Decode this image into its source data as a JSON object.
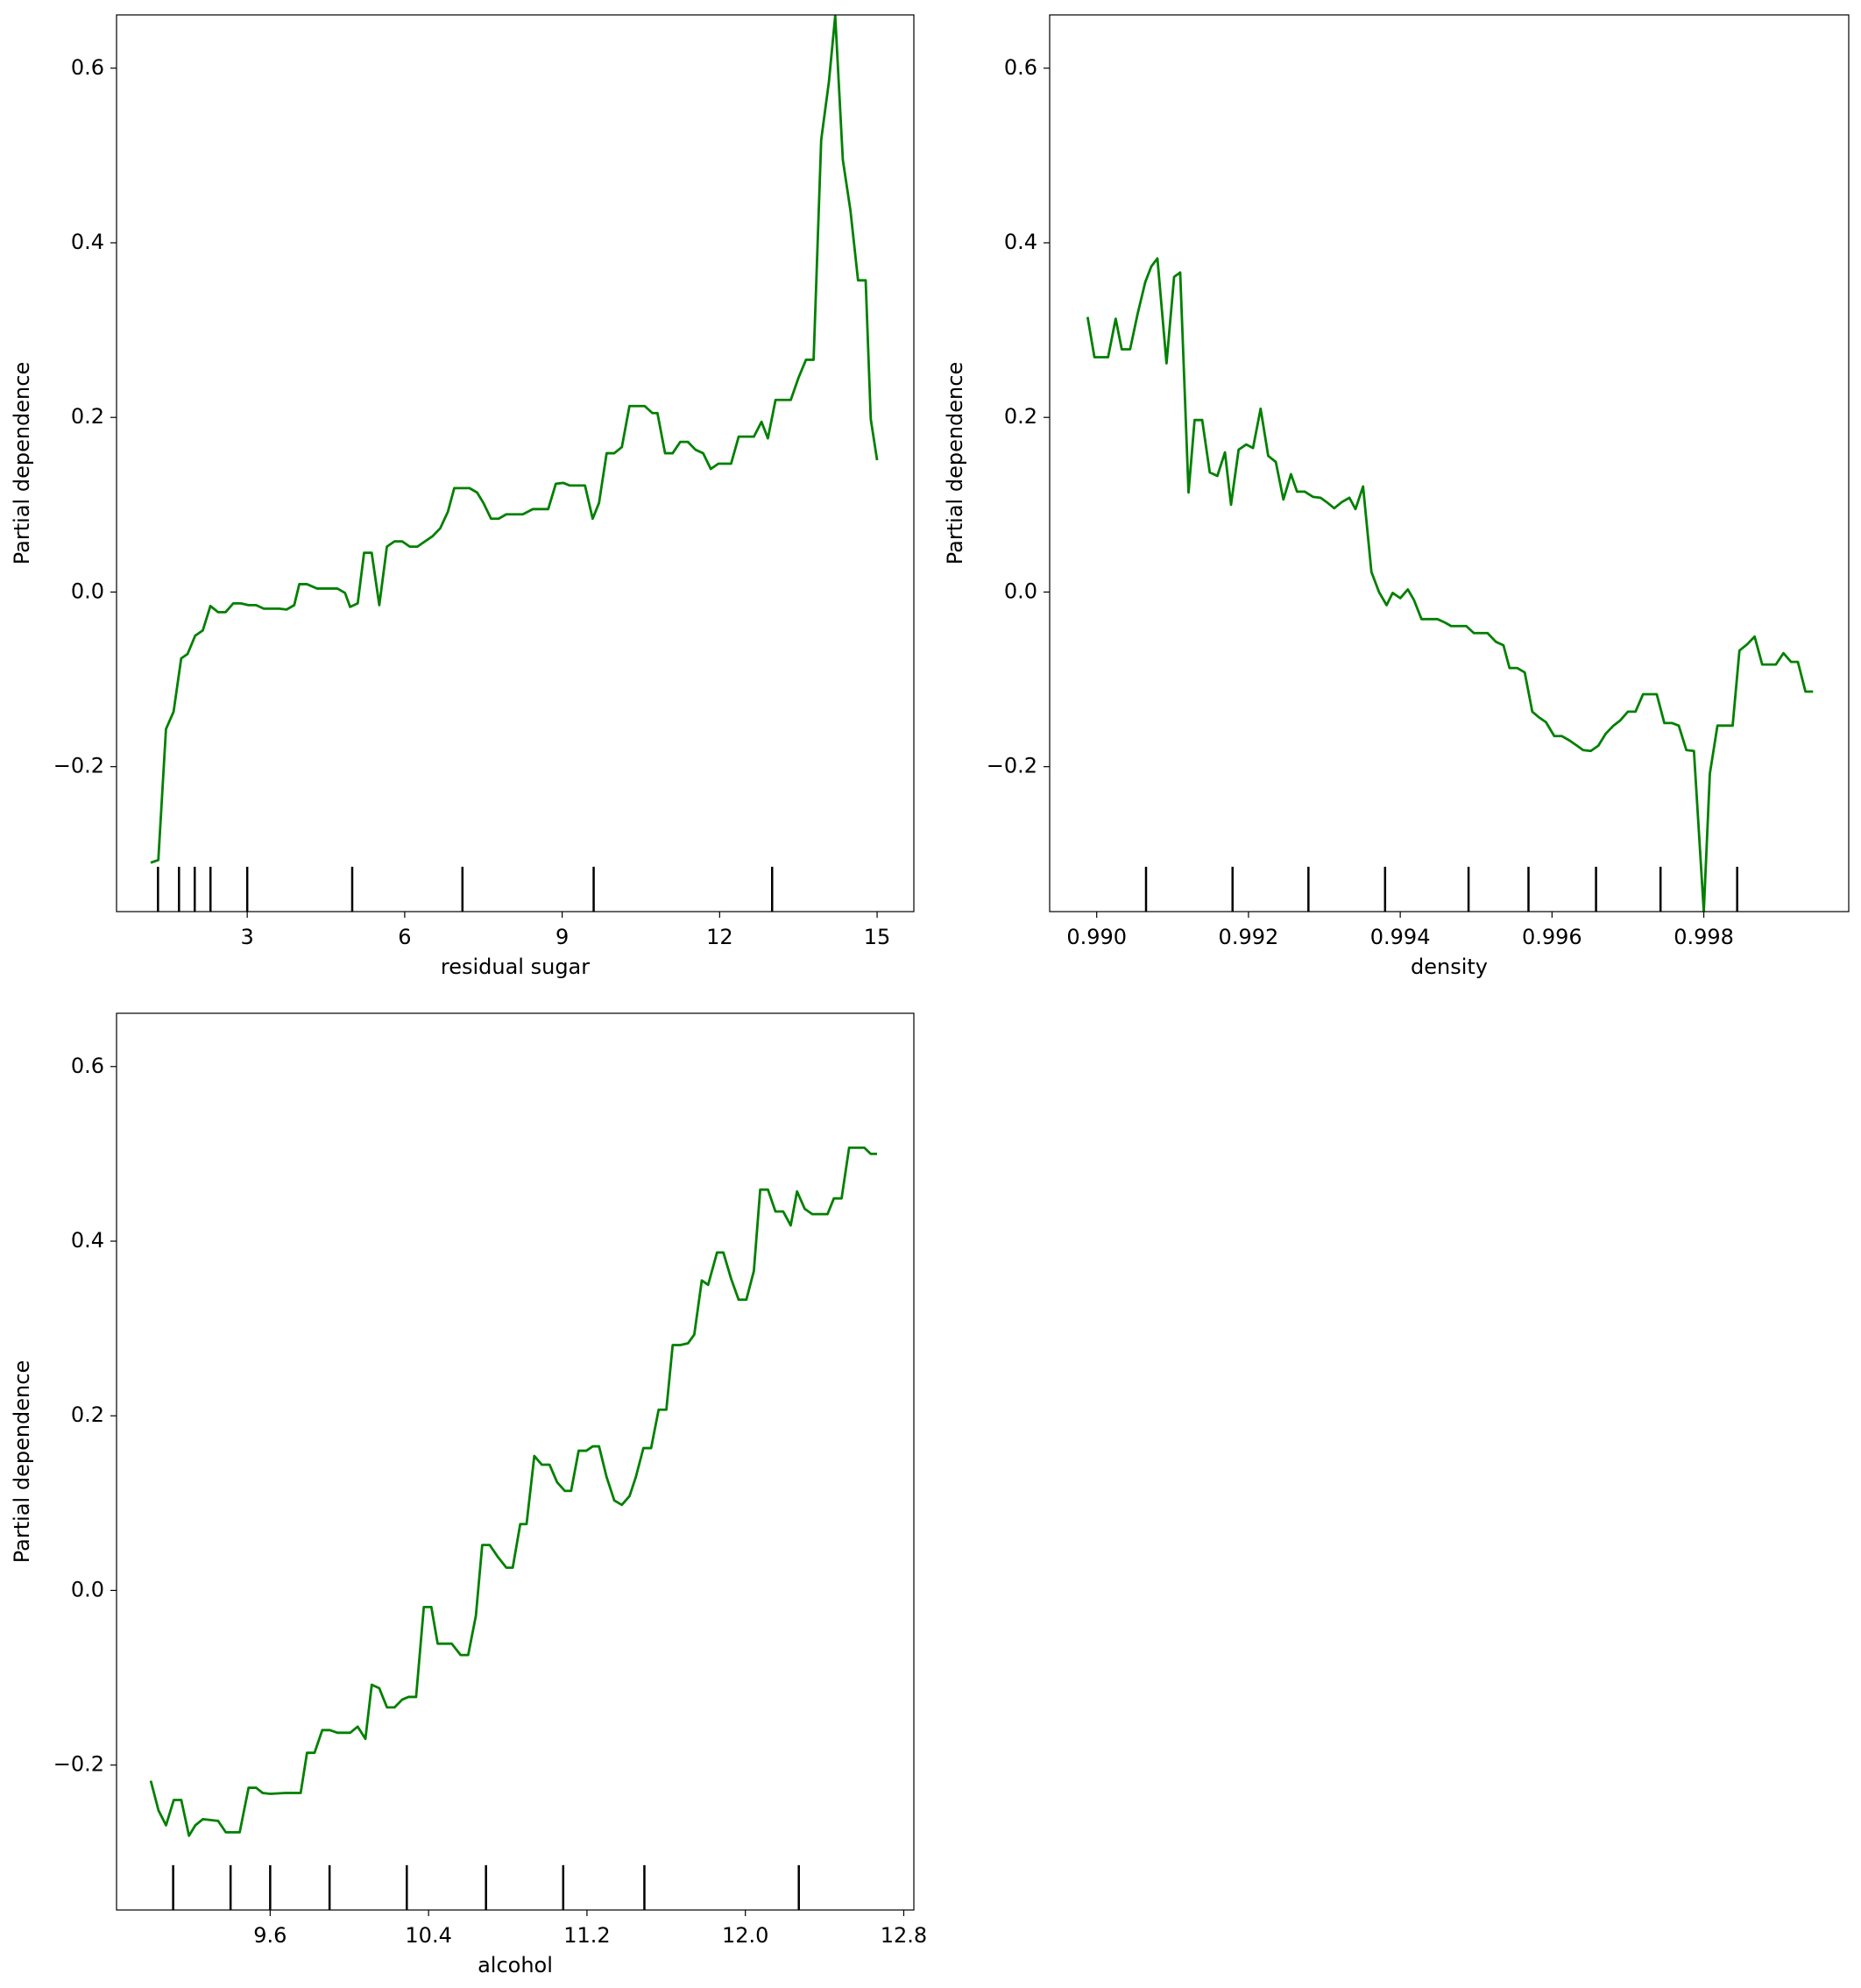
{
  "chart_data": [
    {
      "type": "line",
      "xlabel": "residual sugar",
      "ylabel": "Partial dependence",
      "color": "#008000",
      "x": [
        1.161,
        1.306,
        1.452,
        1.597,
        1.742,
        1.863,
        2.008,
        2.153,
        2.298,
        2.444,
        2.589,
        2.734,
        2.879,
        3.024,
        3.169,
        3.315,
        3.605,
        3.75,
        3.895,
        3.992,
        4.137,
        4.331,
        4.718,
        4.863,
        4.96,
        5.105,
        5.226,
        5.371,
        5.516,
        5.661,
        5.806,
        5.952,
        6.097,
        6.242,
        6.387,
        6.532,
        6.677,
        6.823,
        6.944,
        7.234,
        7.379,
        7.5,
        7.645,
        7.79,
        7.935,
        8.25,
        8.444,
        8.734,
        8.879,
        9.024,
        9.145,
        9.435,
        9.581,
        9.702,
        9.847,
        9.992,
        10.137,
        10.282,
        10.573,
        10.718,
        10.815,
        10.96,
        11.105,
        11.25,
        11.395,
        11.54,
        11.685,
        11.831,
        11.976,
        12.218,
        12.363,
        12.653,
        12.798,
        12.919,
        13.065,
        13.355,
        13.5,
        13.645,
        13.79,
        13.935,
        14.081,
        14.202,
        14.347,
        14.492,
        14.637,
        14.782,
        14.879,
        15.0
      ],
      "values": [
        -0.31,
        -0.307,
        -0.157,
        -0.137,
        -0.076,
        -0.071,
        -0.05,
        -0.044,
        -0.016,
        -0.023,
        -0.023,
        -0.013,
        -0.013,
        -0.015,
        -0.015,
        -0.019,
        -0.019,
        -0.02,
        -0.015,
        0.009,
        0.009,
        0.004,
        0.004,
        -0.001,
        -0.017,
        -0.013,
        0.045,
        0.045,
        -0.015,
        0.052,
        0.058,
        0.058,
        0.052,
        0.052,
        0.058,
        0.064,
        0.073,
        0.092,
        0.119,
        0.119,
        0.114,
        0.102,
        0.084,
        0.084,
        0.089,
        0.089,
        0.095,
        0.095,
        0.124,
        0.125,
        0.122,
        0.122,
        0.084,
        0.102,
        0.159,
        0.159,
        0.166,
        0.213,
        0.213,
        0.205,
        0.205,
        0.159,
        0.159,
        0.172,
        0.172,
        0.163,
        0.159,
        0.141,
        0.147,
        0.147,
        0.178,
        0.178,
        0.195,
        0.176,
        0.22,
        0.22,
        0.245,
        0.266,
        0.266,
        0.518,
        0.584,
        0.66,
        0.495,
        0.437,
        0.357,
        0.357,
        0.198,
        0.151
      ],
      "deciles": [
        1.3,
        1.7,
        2.0,
        2.3,
        3.0,
        5.0,
        7.1,
        9.6,
        13.0
      ],
      "xlim": [
        0.51,
        15.7
      ],
      "xticks": [
        3,
        6,
        9,
        12,
        15
      ],
      "ylim": [
        -0.366,
        0.661
      ],
      "yticks": [
        {
          "value": -0.2,
          "label": "−0.2"
        },
        {
          "value": 0,
          "label": "0.0"
        },
        0.2,
        0.4,
        0.6
      ]
    },
    {
      "type": "line",
      "xlabel": "density",
      "ylabel": "Partial dependence",
      "color": "#008000",
      "x": [
        0.98988,
        0.98997,
        0.99015,
        0.99025,
        0.99033,
        0.99044,
        0.99054,
        0.99064,
        0.99072,
        0.9908,
        0.99092,
        0.99102,
        0.9911,
        0.99121,
        0.99129,
        0.99139,
        0.99149,
        0.99159,
        0.99169,
        0.99177,
        0.99187,
        0.99197,
        0.99206,
        0.99216,
        0.99226,
        0.99236,
        0.99246,
        0.99256,
        0.99264,
        0.99274,
        0.99285,
        0.99295,
        0.99303,
        0.99313,
        0.99323,
        0.99333,
        0.99341,
        0.99351,
        0.99362,
        0.99372,
        0.99382,
        0.9939,
        0.994,
        0.9941,
        0.99418,
        0.99428,
        0.99438,
        0.99449,
        0.99459,
        0.99467,
        0.99477,
        0.99487,
        0.99497,
        0.99505,
        0.99515,
        0.99526,
        0.99536,
        0.99544,
        0.99554,
        0.99564,
        0.99574,
        0.99582,
        0.99592,
        0.99603,
        0.99613,
        0.99623,
        0.99633,
        0.99641,
        0.99651,
        0.99661,
        0.99671,
        0.99681,
        0.9969,
        0.997,
        0.9971,
        0.9972,
        0.99728,
        0.99738,
        0.99748,
        0.99758,
        0.99767,
        0.99777,
        0.99787,
        0.998,
        0.99808,
        0.99818,
        0.99828,
        0.99838,
        0.99847,
        0.99857,
        0.99867,
        0.99877,
        0.99885,
        0.99895,
        0.99905,
        0.99915,
        0.99924,
        0.99934,
        0.99944
      ],
      "values": [
        0.315,
        0.269,
        0.269,
        0.313,
        0.278,
        0.278,
        0.319,
        0.355,
        0.373,
        0.382,
        0.262,
        0.361,
        0.366,
        0.114,
        0.197,
        0.197,
        0.137,
        0.133,
        0.16,
        0.1,
        0.163,
        0.169,
        0.165,
        0.21,
        0.156,
        0.149,
        0.106,
        0.135,
        0.115,
        0.115,
        0.109,
        0.108,
        0.103,
        0.096,
        0.103,
        0.108,
        0.095,
        0.121,
        0.023,
        0.0,
        -0.015,
        -0.001,
        -0.007,
        0.003,
        -0.009,
        -0.031,
        -0.031,
        -0.031,
        -0.035,
        -0.039,
        -0.039,
        -0.039,
        -0.047,
        -0.047,
        -0.047,
        -0.057,
        -0.061,
        -0.087,
        -0.087,
        -0.092,
        -0.137,
        -0.143,
        -0.149,
        -0.165,
        -0.165,
        -0.17,
        -0.176,
        -0.181,
        -0.182,
        -0.176,
        -0.162,
        -0.153,
        -0.147,
        -0.137,
        -0.137,
        -0.117,
        -0.117,
        -0.117,
        -0.15,
        -0.15,
        -0.153,
        -0.181,
        -0.182,
        -0.366,
        -0.208,
        -0.153,
        -0.153,
        -0.153,
        -0.067,
        -0.06,
        -0.051,
        -0.083,
        -0.083,
        -0.083,
        -0.07,
        -0.08,
        -0.08,
        -0.114,
        -0.114
      ],
      "deciles": [
        0.99065,
        0.99179,
        0.99279,
        0.9938,
        0.9949,
        0.99569,
        0.99658,
        0.99743,
        0.99844
      ],
      "xlim": [
        0.98938,
        0.99991
      ],
      "xticks": [
        {
          "value": 0.99,
          "label": "0.990"
        },
        {
          "value": 0.992,
          "label": "0.992"
        },
        {
          "value": 0.994,
          "label": "0.994"
        },
        {
          "value": 0.996,
          "label": "0.996"
        },
        {
          "value": 0.998,
          "label": "0.998"
        }
      ],
      "ylim": [
        -0.366,
        0.661
      ],
      "yticks": [
        {
          "value": -0.2,
          "label": "−0.2"
        },
        {
          "value": 0,
          "label": "0.0"
        },
        0.2,
        0.4,
        0.6
      ]
    },
    {
      "type": "line",
      "xlabel": "alcohol",
      "ylabel": "Partial dependence",
      "color": "#008000",
      "x": [
        8.997,
        9.036,
        9.074,
        9.113,
        9.151,
        9.19,
        9.222,
        9.26,
        9.337,
        9.376,
        9.446,
        9.491,
        9.529,
        9.562,
        9.6,
        9.677,
        9.754,
        9.786,
        9.824,
        9.863,
        9.901,
        9.94,
        10.004,
        10.042,
        10.081,
        10.113,
        10.151,
        10.19,
        10.228,
        10.267,
        10.299,
        10.337,
        10.376,
        10.414,
        10.446,
        10.517,
        10.562,
        10.6,
        10.639,
        10.671,
        10.709,
        10.748,
        10.793,
        10.825,
        10.863,
        10.895,
        10.934,
        10.972,
        11.011,
        11.049,
        11.088,
        11.12,
        11.158,
        11.197,
        11.229,
        11.261,
        11.299,
        11.338,
        11.376,
        11.415,
        11.447,
        11.485,
        11.524,
        11.562,
        11.601,
        11.633,
        11.671,
        11.71,
        11.742,
        11.78,
        11.812,
        11.857,
        11.889,
        11.928,
        11.966,
        12.005,
        12.043,
        12.075,
        12.114,
        12.152,
        12.191,
        12.229,
        12.261,
        12.3,
        12.338,
        12.377,
        12.415,
        12.447,
        12.486,
        12.524,
        12.563,
        12.601,
        12.633,
        12.665
      ],
      "values": [
        -0.218,
        -0.252,
        -0.269,
        -0.24,
        -0.24,
        -0.281,
        -0.269,
        -0.262,
        -0.264,
        -0.277,
        -0.277,
        -0.226,
        -0.226,
        -0.232,
        -0.233,
        -0.232,
        -0.232,
        -0.186,
        -0.186,
        -0.16,
        -0.16,
        -0.163,
        -0.163,
        -0.156,
        -0.17,
        -0.108,
        -0.112,
        -0.134,
        -0.134,
        -0.125,
        -0.122,
        -0.122,
        -0.019,
        -0.019,
        -0.061,
        -0.061,
        -0.074,
        -0.074,
        -0.029,
        0.052,
        0.052,
        0.039,
        0.026,
        0.026,
        0.076,
        0.076,
        0.154,
        0.144,
        0.144,
        0.124,
        0.114,
        0.114,
        0.16,
        0.16,
        0.165,
        0.165,
        0.13,
        0.103,
        0.098,
        0.108,
        0.13,
        0.163,
        0.163,
        0.207,
        0.207,
        0.281,
        0.281,
        0.283,
        0.293,
        0.355,
        0.35,
        0.387,
        0.387,
        0.357,
        0.333,
        0.333,
        0.366,
        0.459,
        0.459,
        0.434,
        0.434,
        0.418,
        0.457,
        0.437,
        0.431,
        0.431,
        0.431,
        0.449,
        0.449,
        0.507,
        0.507,
        0.507,
        0.5,
        0.5
      ],
      "deciles": [
        9.11,
        9.4,
        9.6,
        9.9,
        10.29,
        10.69,
        11.08,
        11.49,
        12.27
      ],
      "xlim": [
        8.824,
        12.851
      ],
      "xticks": [
        9.6,
        10.4,
        11.2,
        {
          "value": 12.0,
          "label": "12.0"
        },
        12.8
      ],
      "ylim": [
        -0.366,
        0.661
      ],
      "yticks": [
        {
          "value": -0.2,
          "label": "−0.2"
        },
        {
          "value": 0,
          "label": "0.0"
        },
        0.2,
        0.4,
        0.6
      ]
    }
  ]
}
